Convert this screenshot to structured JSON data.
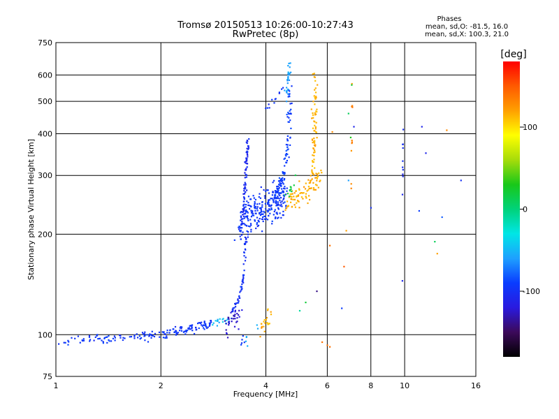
{
  "chart_data": {
    "type": "scatter",
    "title": "Tromsø 20150513 10:26:00-10:27:43",
    "subtitle": "RwPretec (8p)",
    "xlabel": "Frequency [MHz]",
    "ylabel": "Stationary phase Virtual Height [km]",
    "xscale": "log",
    "yscale": "log",
    "xlim": [
      1,
      16
    ],
    "ylim": [
      75,
      750
    ],
    "x_ticks": [
      1,
      2,
      4,
      6,
      8,
      10,
      16
    ],
    "x_tick_labels": [
      "1",
      "2",
      "4",
      "6",
      "8",
      "10",
      "16"
    ],
    "y_ticks": [
      75,
      100,
      200,
      300,
      400,
      500,
      600,
      750
    ],
    "y_tick_labels": [
      "75",
      "100",
      "200",
      "300",
      "400",
      "500",
      "600",
      "750"
    ],
    "grid": true,
    "colorbar": {
      "label": "[deg]",
      "range": [
        -180,
        180
      ],
      "ticks": [
        100,
        0,
        -100
      ],
      "tick_labels": [
        "100",
        "0",
        "-100"
      ],
      "colors": [
        "#000000",
        "#3c0a5a",
        "#2a1adf",
        "#0a3cff",
        "#1ea0ff",
        "#00e6e6",
        "#00d27a",
        "#19c819",
        "#a6dc0a",
        "#ffff00",
        "#ffa000",
        "#ff5a00",
        "#ff0000"
      ]
    },
    "stats": {
      "title": "Phases",
      "line_o": "mean, sd,O: -81.5, 16.0",
      "line_x": "mean, sd,X: 100.3, 21.0"
    },
    "series": [
      {
        "type": "trace",
        "f": [
          1.0,
          1.2,
          1.4,
          1.6,
          1.8,
          2.0,
          2.2,
          2.4,
          2.6,
          2.8
        ],
        "h": [
          96,
          97,
          97,
          98,
          99,
          100,
          102,
          104,
          106,
          108
        ],
        "phase": -95,
        "spread": 0.02,
        "count": 170
      },
      {
        "type": "trace",
        "f": [
          2.8,
          3.0,
          3.2
        ],
        "h": [
          108,
          110,
          114
        ],
        "phase": -50,
        "spread": 0.02,
        "count": 18
      },
      {
        "type": "trace",
        "f": [
          3.05,
          3.2,
          3.35
        ],
        "h": [
          104,
          110,
          118
        ],
        "phase": -125,
        "spread": 0.045,
        "count": 35
      },
      {
        "type": "trace",
        "f": [
          3.2,
          3.35,
          3.45,
          3.5
        ],
        "h": [
          118,
          128,
          150,
          200
        ],
        "phase": -100,
        "spread": 0.015,
        "count": 55
      },
      {
        "type": "trace",
        "f": [
          3.35,
          3.45,
          3.5,
          3.55
        ],
        "h": [
          200,
          240,
          300,
          380
        ],
        "phase": -105,
        "spread": 0.018,
        "count": 90
      },
      {
        "type": "trace",
        "f": [
          3.4,
          3.7,
          4.0,
          4.3,
          4.5
        ],
        "h": [
          215,
          230,
          240,
          255,
          265
        ],
        "phase": -95,
        "spread": 0.08,
        "count": 260
      },
      {
        "type": "trace",
        "f": [
          4.2,
          4.5,
          4.65,
          4.7
        ],
        "h": [
          250,
          300,
          380,
          560
        ],
        "phase": -90,
        "spread": 0.03,
        "count": 90
      },
      {
        "type": "trace",
        "f": [
          4.55,
          4.65,
          4.68
        ],
        "h": [
          500,
          600,
          660
        ],
        "phase": -60,
        "spread": 0.02,
        "count": 28
      },
      {
        "type": "trace",
        "f": [
          4.0,
          4.2,
          4.5
        ],
        "h": [
          480,
          500,
          560
        ],
        "phase": -100,
        "spread": 0.02,
        "count": 12
      },
      {
        "type": "trace",
        "f": [
          3.8,
          4.0,
          4.1
        ],
        "h": [
          100,
          107,
          114
        ],
        "phase": 115,
        "spread": 0.04,
        "count": 22
      },
      {
        "type": "trace",
        "f": [
          4.6,
          5.0,
          5.5,
          5.7
        ],
        "h": [
          250,
          265,
          280,
          300
        ],
        "phase": 115,
        "spread": 0.05,
        "count": 90
      },
      {
        "type": "trace",
        "f": [
          5.45,
          5.5,
          5.55
        ],
        "h": [
          300,
          400,
          600
        ],
        "phase": 115,
        "spread": 0.03,
        "count": 70
      },
      {
        "type": "trace",
        "f": [
          4.6,
          4.7,
          4.8
        ],
        "h": [
          260,
          272,
          285
        ],
        "phase": 20,
        "spread": 0.03,
        "count": 12
      },
      {
        "type": "trace",
        "f": [
          3.5,
          3.6,
          3.8
        ],
        "h": [
          95,
          100,
          108
        ],
        "phase": -55,
        "spread": 0.03,
        "count": 6
      },
      {
        "type": "trace",
        "f": [
          3.4,
          3.5
        ],
        "h": [
          96,
          98
        ],
        "phase": -95,
        "spread": 0.04,
        "count": 5
      },
      {
        "type": "trace",
        "f": [
          7.0,
          7.1
        ],
        "h": [
          250,
          600
        ],
        "phase": 130,
        "spread": 0.01,
        "count": 10
      },
      {
        "type": "trace",
        "f": [
          9.85,
          9.9
        ],
        "h": [
          230,
          420
        ],
        "phase": -105,
        "spread": 0.005,
        "count": 10
      },
      {
        "type": "points",
        "x": [
          6.1,
          6.6,
          6.7,
          6.8,
          6.9,
          7.15,
          7.0,
          8.0,
          9.85,
          11.2,
          11.5,
          12.2,
          12.4,
          12.8,
          13.2,
          14.5,
          5.8,
          6.0,
          5.2,
          5.0,
          5.6,
          6.2,
          6.1,
          6.9,
          7.05,
          11.0
        ],
        "y": [
          92,
          120,
          160,
          205,
          290,
          420,
          390,
          240,
          145,
          420,
          350,
          190,
          175,
          225,
          410,
          290,
          95,
          93,
          125,
          118,
          135,
          405,
          185,
          460,
          560,
          235
        ],
        "phase": [
          140,
          -90,
          150,
          120,
          -60,
          -110,
          30,
          -100,
          -110,
          -110,
          -110,
          10,
          120,
          -80,
          130,
          -100,
          140,
          140,
          20,
          -10,
          -140,
          130,
          140,
          10,
          20,
          -90
        ]
      }
    ]
  }
}
